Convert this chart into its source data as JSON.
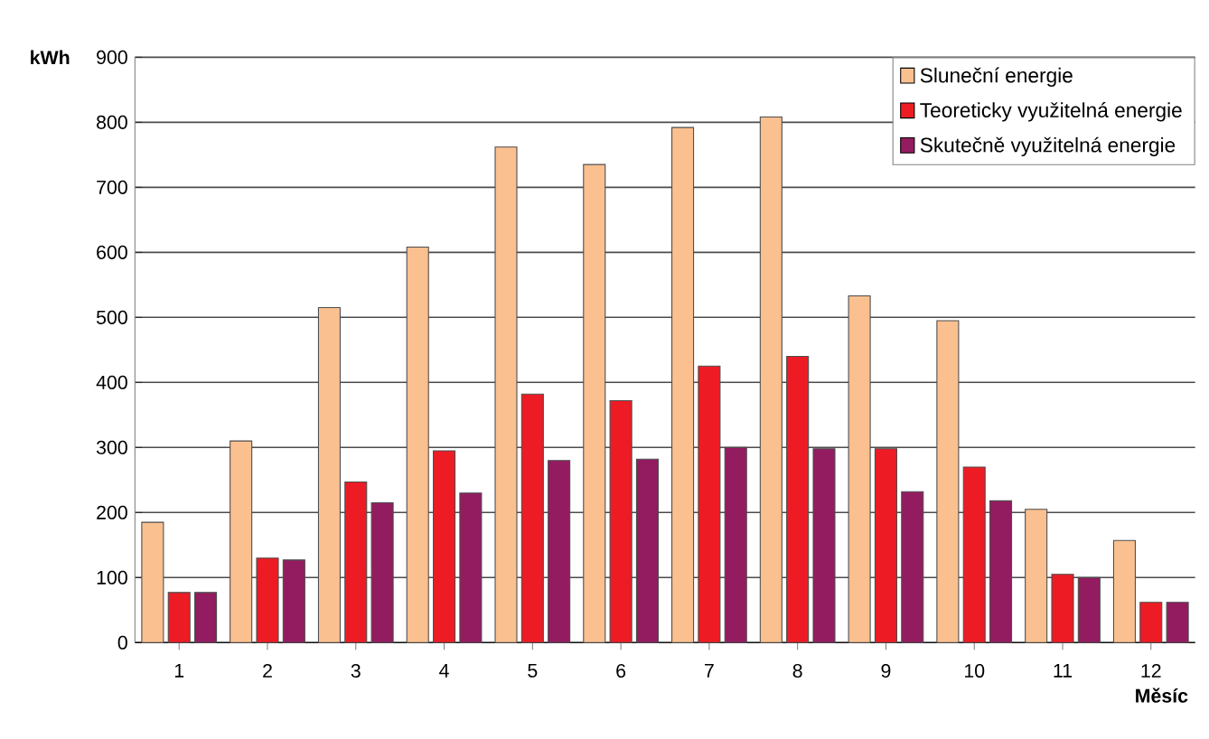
{
  "chart_data": {
    "type": "bar",
    "ylabel": "kWh",
    "xlabel": "Měsíc",
    "categories": [
      "1",
      "2",
      "3",
      "4",
      "5",
      "6",
      "7",
      "8",
      "9",
      "10",
      "11",
      "12"
    ],
    "series": [
      {
        "name": "Sluneční energie",
        "color": "#fac090",
        "values": [
          185,
          310,
          515,
          608,
          762,
          735,
          792,
          808,
          533,
          495,
          205,
          157
        ]
      },
      {
        "name": "Teoreticky využitelná energie",
        "color": "#ed1c24",
        "values": [
          77,
          130,
          247,
          295,
          382,
          372,
          425,
          440,
          298,
          270,
          105,
          62
        ]
      },
      {
        "name": "Skutečně využitelná energie",
        "color": "#931c60",
        "values": [
          77,
          127,
          215,
          230,
          280,
          282,
          300,
          298,
          232,
          218,
          100,
          62
        ]
      }
    ],
    "ylim": [
      0,
      900
    ],
    "yticks": [
      0,
      100,
      200,
      300,
      400,
      500,
      600,
      700,
      800,
      900
    ],
    "grid": "y",
    "legend": "top right"
  }
}
